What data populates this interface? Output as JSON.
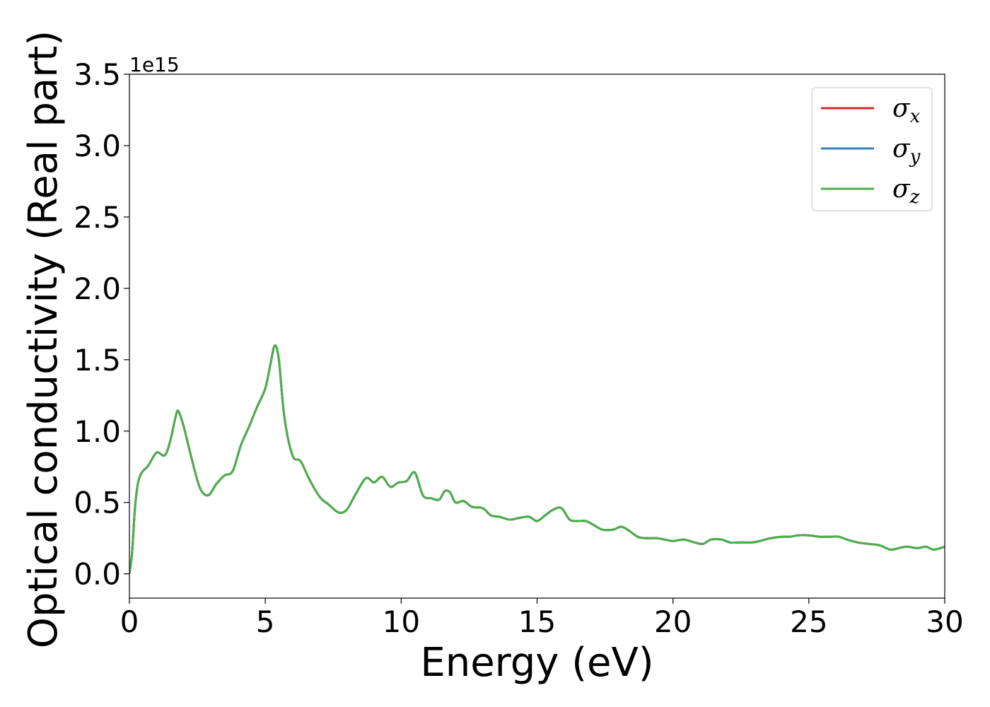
{
  "chart_data": {
    "type": "line",
    "xlabel": "Energy (eV)",
    "ylabel": "Optical conductivity (Real part)",
    "y_offset_label": "1e15",
    "xlim": [
      0,
      30
    ],
    "ylim": [
      -0.17,
      3.5
    ],
    "xticks": [
      0,
      5,
      10,
      15,
      20,
      25,
      30
    ],
    "xtick_labels": [
      "0",
      "5",
      "10",
      "15",
      "20",
      "25",
      "30"
    ],
    "yticks": [
      0.0,
      0.5,
      1.0,
      1.5,
      2.0,
      2.5,
      3.0,
      3.5
    ],
    "ytick_labels": [
      "0.0",
      "0.5",
      "1.0",
      "1.5",
      "2.0",
      "2.5",
      "3.0",
      "3.5"
    ],
    "grid": false,
    "legend_position": "top-right",
    "series": [
      {
        "name": "σx",
        "base": "σ",
        "sub": "x",
        "color": "#d62728"
      },
      {
        "name": "σy",
        "base": "σ",
        "sub": "y",
        "color": "#377eb8"
      },
      {
        "name": "σz",
        "base": "σ",
        "sub": "z",
        "color": "#4daf4a"
      }
    ],
    "x": [
      0,
      0.1,
      0.2,
      0.3,
      0.4,
      0.5,
      0.7,
      1.0,
      1.3,
      1.5,
      1.7,
      1.8,
      2.0,
      2.3,
      2.6,
      2.9,
      3.2,
      3.5,
      3.8,
      4.1,
      4.4,
      4.7,
      5.0,
      5.2,
      5.35,
      5.5,
      5.7,
      6.0,
      6.3,
      6.6,
      7.0,
      7.3,
      7.7,
      8.0,
      8.3,
      8.7,
      9.0,
      9.3,
      9.6,
      9.9,
      10.2,
      10.5,
      10.8,
      11.1,
      11.4,
      11.6,
      11.8,
      12.0,
      12.3,
      12.6,
      13.0,
      13.3,
      13.6,
      14.0,
      14.3,
      14.7,
      15.0,
      15.3,
      15.6,
      15.9,
      16.2,
      16.5,
      16.8,
      17.1,
      17.4,
      17.8,
      18.1,
      18.4,
      18.7,
      19.0,
      19.4,
      19.7,
      20.0,
      20.4,
      20.8,
      21.1,
      21.4,
      21.8,
      22.1,
      22.5,
      22.9,
      23.2,
      23.6,
      24.0,
      24.3,
      24.6,
      25.0,
      25.4,
      25.8,
      26.1,
      26.4,
      26.8,
      27.2,
      27.6,
      28.0,
      28.3,
      28.6,
      29.0,
      29.3,
      29.6,
      30.0
    ],
    "y": [
      0.0,
      0.15,
      0.45,
      0.62,
      0.69,
      0.72,
      0.76,
      0.85,
      0.83,
      0.93,
      1.1,
      1.14,
      1.03,
      0.8,
      0.6,
      0.55,
      0.63,
      0.69,
      0.72,
      0.9,
      1.03,
      1.17,
      1.3,
      1.48,
      1.6,
      1.5,
      1.1,
      0.83,
      0.79,
      0.67,
      0.54,
      0.49,
      0.43,
      0.45,
      0.55,
      0.67,
      0.64,
      0.68,
      0.61,
      0.64,
      0.65,
      0.71,
      0.55,
      0.53,
      0.52,
      0.58,
      0.57,
      0.5,
      0.51,
      0.47,
      0.46,
      0.41,
      0.4,
      0.38,
      0.39,
      0.4,
      0.37,
      0.41,
      0.45,
      0.46,
      0.38,
      0.37,
      0.37,
      0.34,
      0.31,
      0.31,
      0.33,
      0.3,
      0.26,
      0.25,
      0.25,
      0.24,
      0.23,
      0.24,
      0.22,
      0.21,
      0.24,
      0.24,
      0.22,
      0.22,
      0.22,
      0.23,
      0.25,
      0.26,
      0.26,
      0.27,
      0.27,
      0.26,
      0.26,
      0.26,
      0.24,
      0.22,
      0.21,
      0.2,
      0.17,
      0.18,
      0.19,
      0.18,
      0.19,
      0.17,
      0.19
    ]
  }
}
